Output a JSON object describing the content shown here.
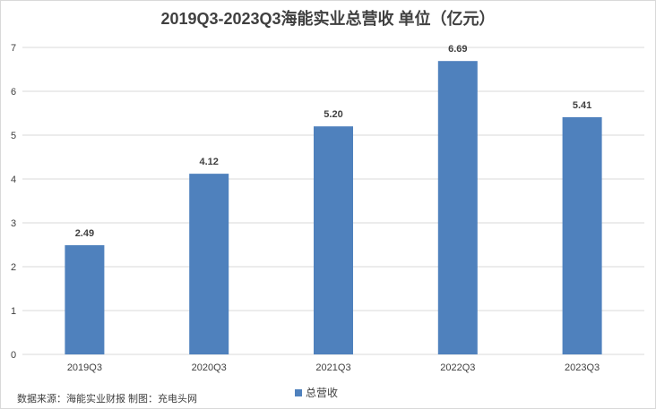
{
  "chart_data": {
    "type": "bar",
    "title": "2019Q3-2023Q3海能实业总营收 单位（亿元）",
    "categories": [
      "2019Q3",
      "2020Q3",
      "2021Q3",
      "2022Q3",
      "2023Q3"
    ],
    "series": [
      {
        "name": "总营收",
        "values": [
          2.49,
          4.12,
          5.2,
          6.69,
          5.41
        ],
        "labels": [
          "2.49",
          "4.12",
          "5.20",
          "6.69",
          "5.41"
        ]
      }
    ],
    "ylim": [
      0,
      7
    ],
    "yticks": [
      0,
      1,
      2,
      3,
      4,
      5,
      6,
      7
    ],
    "grid": true,
    "legend": "bottom",
    "bar_color": "#4f81bd"
  },
  "source_note": "数据来源：海能实业财报 制图：充电头网"
}
